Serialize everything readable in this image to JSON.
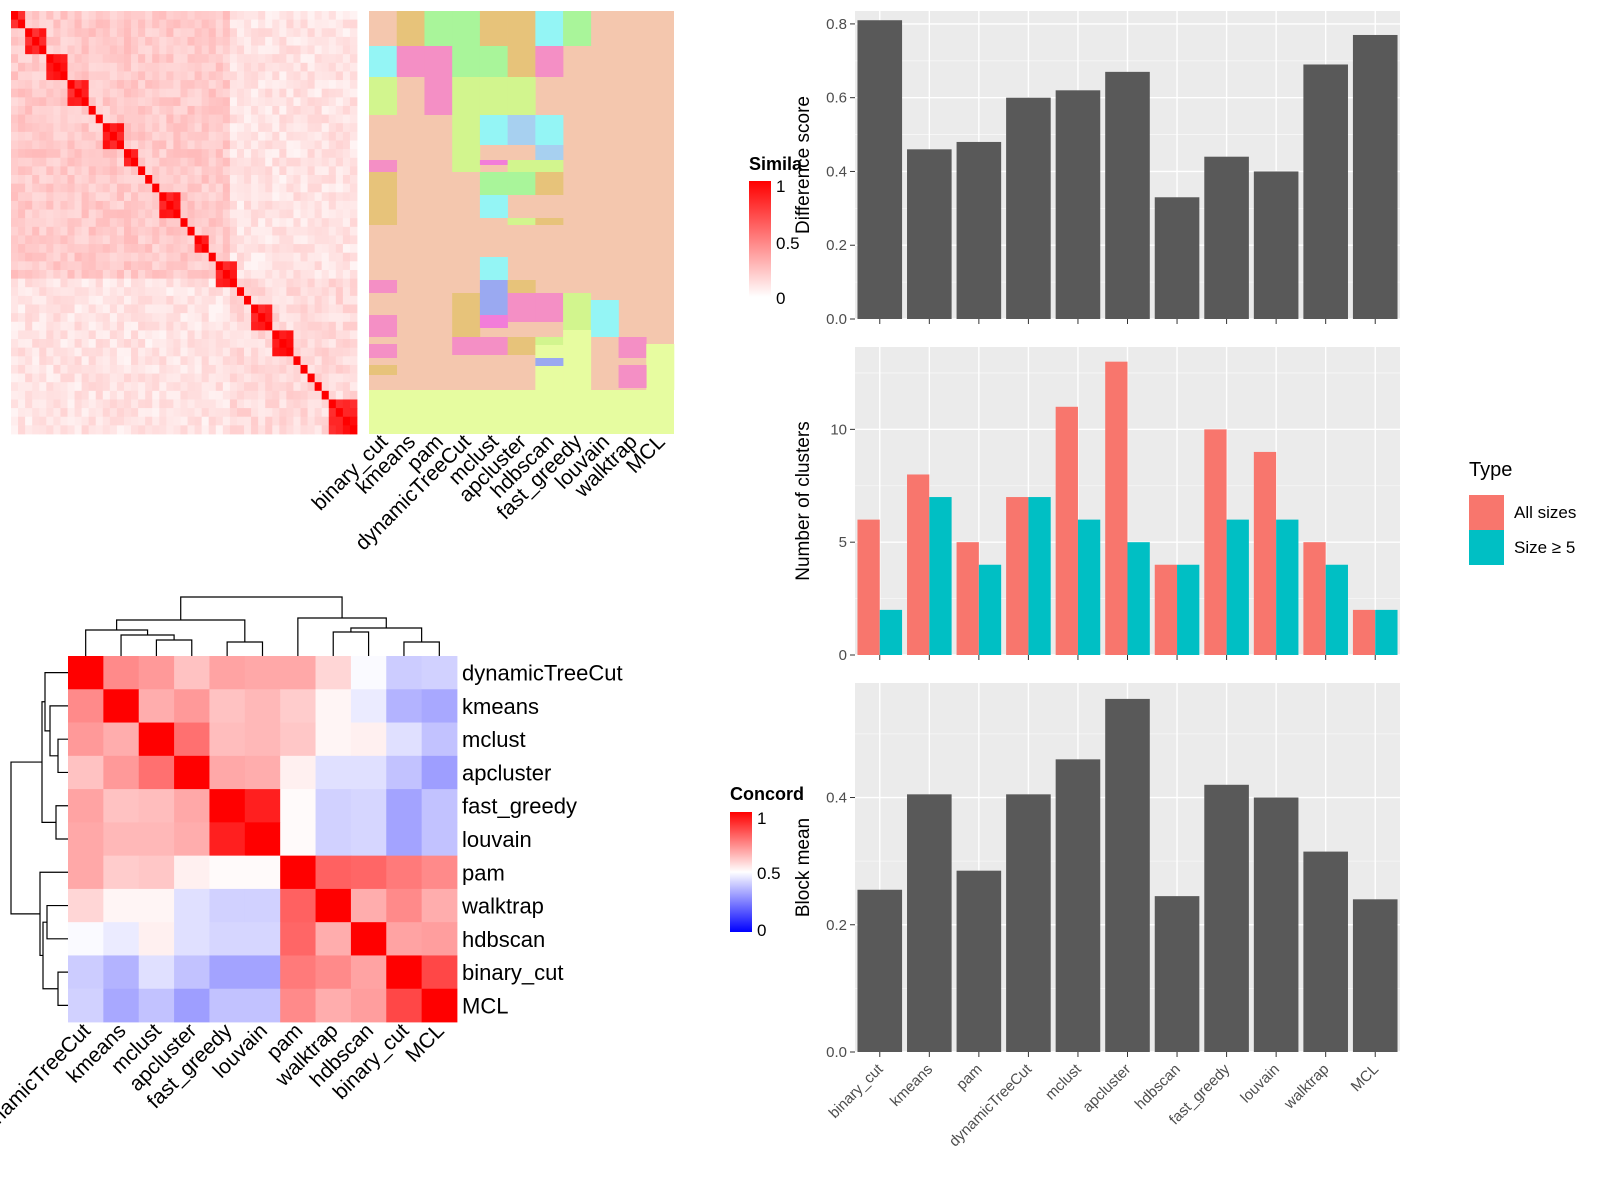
{
  "methods_short": [
    "binary_cut",
    "kmeans",
    "pam",
    "dynamicTreeCut",
    "mclust",
    "apcluster",
    "hdbscan",
    "fast_greedy",
    "louvain",
    "walktrap",
    "MCL"
  ],
  "methods_concordance_order": [
    "dynamicTreeCut",
    "kmeans",
    "mclust",
    "apcluster",
    "fast_greedy",
    "louvain",
    "pam",
    "walktrap",
    "hdbscan",
    "binary_cut",
    "MCL"
  ],
  "similarity_legend": {
    "title": "Simila",
    "ticks": [
      "1",
      "0.5",
      "0"
    ]
  },
  "concordance_legend": {
    "title": "Concord",
    "ticks": [
      "1",
      "0.5",
      "0"
    ]
  },
  "type_legend": {
    "title": "Type",
    "items": [
      "All sizes",
      "Size ≥ 5"
    ]
  },
  "colors": {
    "bar_dark": "#595959",
    "all_sizes": "#F8766D",
    "size5": "#00BFC4",
    "panel_bg": "#EBEBEB",
    "grid": "#FFFFFF",
    "heat_high": "#FF0000",
    "heat_mid": "#FFFFFF",
    "heat_low": "#0000FF",
    "cluster_bg": "#F4C7AE",
    "cluster_last": "#E6FCA0"
  },
  "chart_data": [
    {
      "type": "heatmap",
      "title": "",
      "legend_title": "Similarity",
      "size": 49,
      "diagonal_blocks": [
        2,
        3,
        3,
        3,
        1,
        1,
        3,
        2,
        1,
        1,
        1,
        3,
        1,
        1,
        2,
        1,
        3,
        1,
        1,
        3,
        3,
        1,
        1,
        1,
        1,
        1,
        5
      ],
      "description_range": [
        0,
        1
      ]
    },
    {
      "type": "heatmap",
      "title": "",
      "legend_title": "Concordance",
      "rows": [
        "dynamicTreeCut",
        "kmeans",
        "mclust",
        "apcluster",
        "fast_greedy",
        "louvain",
        "pam",
        "walktrap",
        "hdbscan",
        "binary_cut",
        "MCL"
      ],
      "columns": [
        "dynamicTreeCut",
        "kmeans",
        "mclust",
        "apcluster",
        "fast_greedy",
        "louvain",
        "pam",
        "walktrap",
        "hdbscan",
        "binary_cut",
        "MCL"
      ],
      "values": [
        [
          1.0,
          0.73,
          0.7,
          0.62,
          0.68,
          0.67,
          0.67,
          0.58,
          0.49,
          0.4,
          0.41
        ],
        [
          0.73,
          1.0,
          0.66,
          0.7,
          0.62,
          0.64,
          0.6,
          0.52,
          0.46,
          0.35,
          0.33
        ],
        [
          0.7,
          0.66,
          1.0,
          0.78,
          0.63,
          0.64,
          0.61,
          0.52,
          0.53,
          0.44,
          0.38
        ],
        [
          0.62,
          0.7,
          0.78,
          1.0,
          0.67,
          0.66,
          0.53,
          0.44,
          0.44,
          0.38,
          0.31
        ],
        [
          0.68,
          0.62,
          0.63,
          0.67,
          1.0,
          0.94,
          0.51,
          0.41,
          0.42,
          0.32,
          0.38
        ],
        [
          0.67,
          0.64,
          0.64,
          0.66,
          0.94,
          1.0,
          0.51,
          0.41,
          0.42,
          0.32,
          0.38
        ],
        [
          0.67,
          0.6,
          0.61,
          0.53,
          0.51,
          0.51,
          1.0,
          0.81,
          0.8,
          0.76,
          0.73
        ],
        [
          0.58,
          0.52,
          0.52,
          0.44,
          0.41,
          0.41,
          0.81,
          1.0,
          0.66,
          0.73,
          0.66
        ],
        [
          0.49,
          0.46,
          0.53,
          0.44,
          0.42,
          0.42,
          0.8,
          0.66,
          1.0,
          0.68,
          0.69
        ],
        [
          0.4,
          0.35,
          0.44,
          0.38,
          0.32,
          0.32,
          0.76,
          0.73,
          0.68,
          1.0,
          0.86
        ],
        [
          0.41,
          0.33,
          0.38,
          0.31,
          0.38,
          0.38,
          0.73,
          0.66,
          0.69,
          0.86,
          1.0
        ]
      ],
      "legend_range": [
        0,
        1
      ]
    },
    {
      "type": "bar",
      "title": "",
      "xlabel": "",
      "ylabel": "Difference score",
      "categories": [
        "binary_cut",
        "kmeans",
        "pam",
        "dynamicTreeCut",
        "mclust",
        "apcluster",
        "hdbscan",
        "fast_greedy",
        "louvain",
        "walktrap",
        "MCL"
      ],
      "values": [
        0.81,
        0.46,
        0.48,
        0.6,
        0.62,
        0.67,
        0.33,
        0.44,
        0.4,
        0.69,
        0.77
      ],
      "ylim": [
        0,
        0.835
      ],
      "yticks": [
        0.0,
        0.2,
        0.4,
        0.6,
        0.8
      ],
      "ytick_labels": [
        "0.0",
        "0.2",
        "0.4",
        "0.6",
        "0.8"
      ],
      "grid": true
    },
    {
      "type": "bar",
      "title": "",
      "xlabel": "",
      "ylabel": "Number of clusters",
      "categories": [
        "binary_cut",
        "kmeans",
        "pam",
        "dynamicTreeCut",
        "mclust",
        "apcluster",
        "hdbscan",
        "fast_greedy",
        "louvain",
        "walktrap",
        "MCL"
      ],
      "series": [
        {
          "name": "All sizes",
          "values": [
            6,
            8,
            5,
            7,
            11,
            13,
            4,
            10,
            9,
            5,
            2
          ]
        },
        {
          "name": "Size ≥ 5",
          "values": [
            2,
            7,
            4,
            7,
            6,
            5,
            4,
            6,
            6,
            4,
            2
          ]
        }
      ],
      "ylim": [
        0,
        13.65
      ],
      "yticks": [
        0,
        5,
        10
      ],
      "ytick_labels": [
        "0",
        "5",
        "10"
      ],
      "legend": "right",
      "grid": true
    },
    {
      "type": "bar",
      "title": "",
      "xlabel": "",
      "ylabel": "Block mean",
      "categories": [
        "binary_cut",
        "kmeans",
        "pam",
        "dynamicTreeCut",
        "mclust",
        "apcluster",
        "hdbscan",
        "fast_greedy",
        "louvain",
        "walktrap",
        "MCL"
      ],
      "values": [
        0.255,
        0.405,
        0.285,
        0.405,
        0.46,
        0.555,
        0.245,
        0.42,
        0.4,
        0.315,
        0.24
      ],
      "ylim": [
        0,
        0.58
      ],
      "yticks": [
        0.0,
        0.2,
        0.4
      ],
      "ytick_labels": [
        "0.0",
        "0.2",
        "0.4"
      ],
      "grid": true
    }
  ]
}
